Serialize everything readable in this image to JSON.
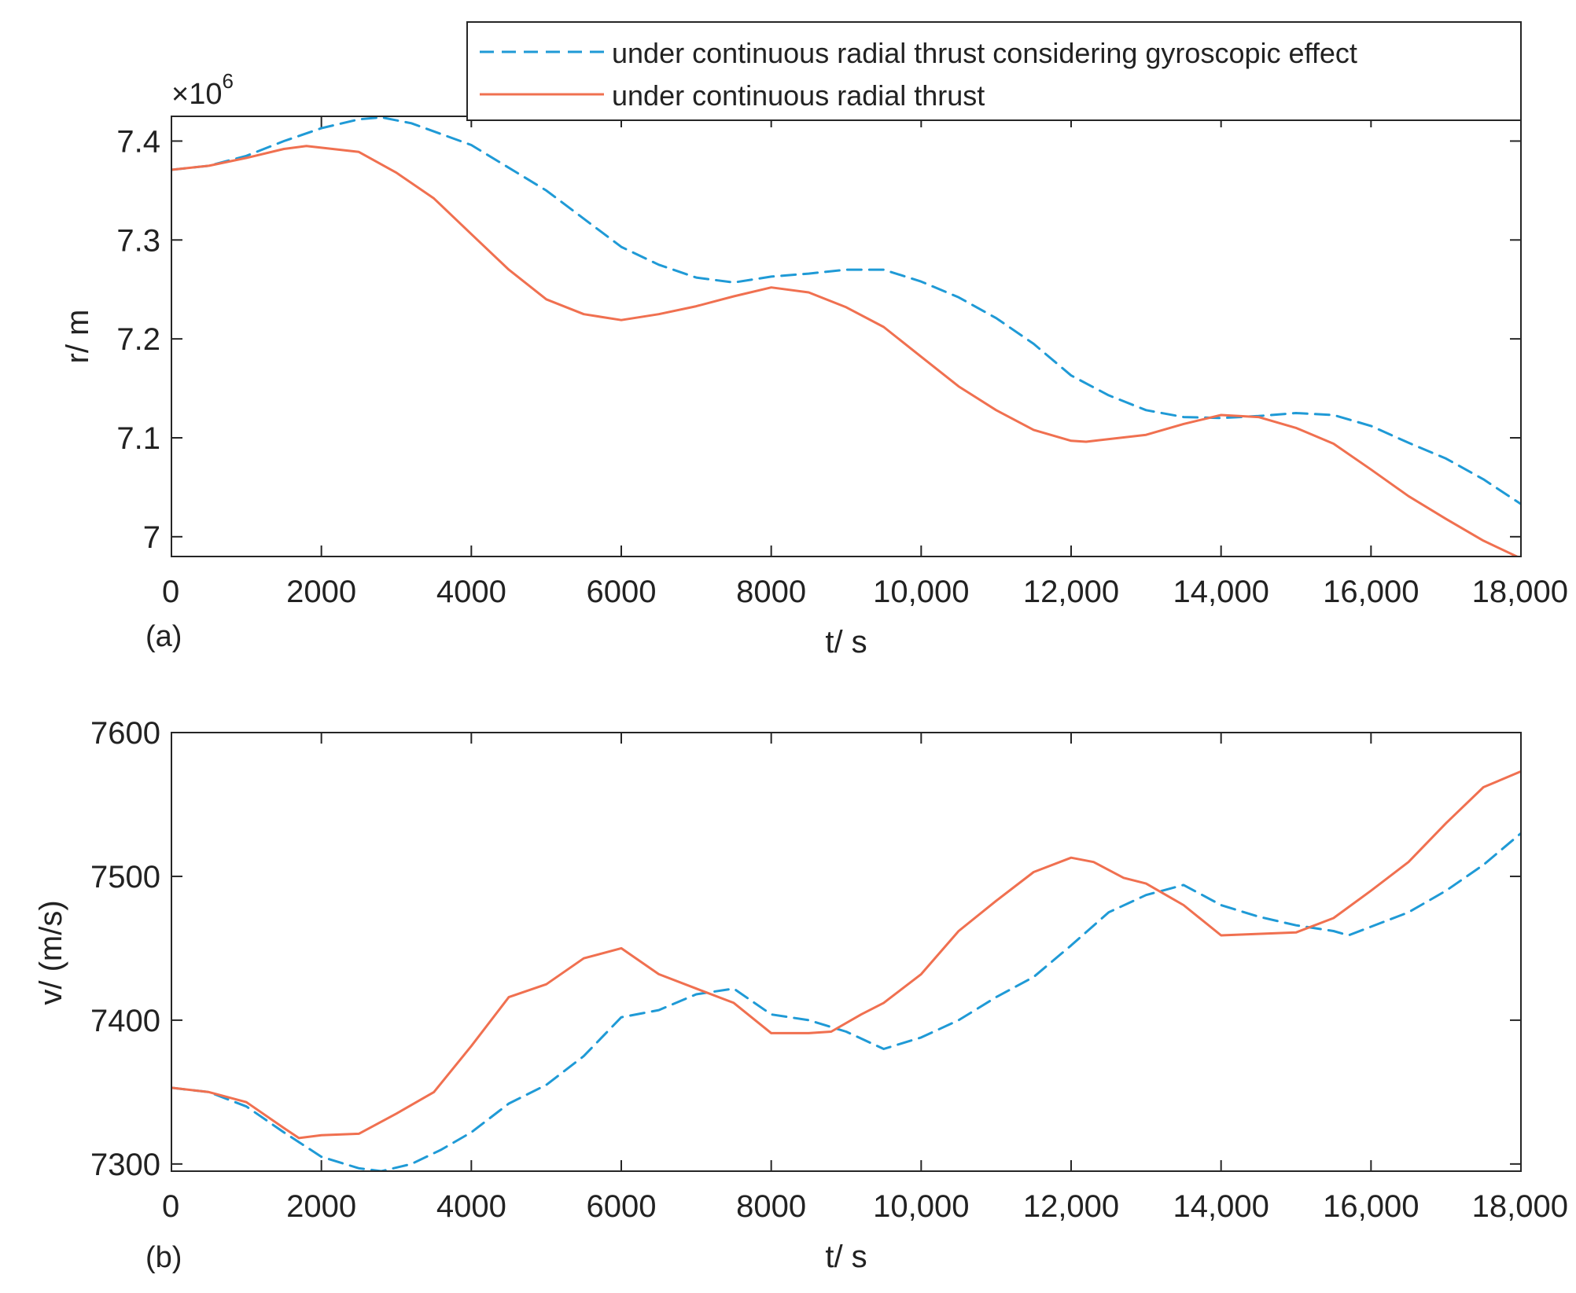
{
  "chart_data": [
    {
      "type": "line",
      "panel_label": "(a)",
      "xlabel": "t/ s",
      "ylabel": "r/ m",
      "exponent_label": "×10",
      "exponent_sup": "6",
      "xlim": [
        0,
        18000
      ],
      "ylim": [
        6.98,
        7.425
      ],
      "xticks": [
        0,
        2000,
        4000,
        6000,
        8000,
        10000,
        12000,
        14000,
        16000,
        18000
      ],
      "xtick_labels": [
        "0",
        "2000",
        "4000",
        "6000",
        "8000",
        "10,000",
        "12,000",
        "14,000",
        "16,000",
        "18,000"
      ],
      "yticks": [
        7.0,
        7.1,
        7.2,
        7.3,
        7.4
      ],
      "ytick_labels": [
        "7",
        "7.1",
        "7.2",
        "7.3",
        "7.4"
      ],
      "legend": {
        "position": "top-right",
        "entries": [
          {
            "label": "under continuous radial  thrust considering gyroscopic effect",
            "series": 0
          },
          {
            "label": "under continuous radial  thrust",
            "series": 1
          }
        ]
      },
      "series": [
        {
          "name": "under continuous radial  thrust considering gyroscopic effect",
          "style": "dashed",
          "color": "#1f9ad6",
          "x": [
            0,
            500,
            1000,
            1500,
            2000,
            2500,
            2800,
            3200,
            4000,
            5000,
            6000,
            6500,
            7000,
            7500,
            8000,
            8500,
            9000,
            9500,
            10000,
            10500,
            11000,
            11500,
            12000,
            12500,
            13000,
            13500,
            14000,
            14500,
            15000,
            15500,
            16000,
            16500,
            17000,
            17500,
            18000
          ],
          "y": [
            7.371,
            7.375,
            7.385,
            7.4,
            7.413,
            7.422,
            7.424,
            7.418,
            7.396,
            7.35,
            7.293,
            7.275,
            7.262,
            7.257,
            7.263,
            7.266,
            7.27,
            7.27,
            7.258,
            7.242,
            7.221,
            7.195,
            7.163,
            7.143,
            7.128,
            7.121,
            7.12,
            7.122,
            7.125,
            7.123,
            7.112,
            7.095,
            7.079,
            7.058,
            7.033
          ]
        },
        {
          "name": "under continuous radial  thrust",
          "style": "solid",
          "color": "#f07050",
          "x": [
            0,
            500,
            1000,
            1500,
            1800,
            2500,
            3000,
            3500,
            4000,
            4500,
            5000,
            5500,
            6000,
            6500,
            7000,
            7500,
            8000,
            8500,
            9000,
            9500,
            10000,
            10500,
            11000,
            11500,
            12000,
            12200,
            13000,
            13500,
            14000,
            14500,
            15000,
            15500,
            16000,
            16500,
            17000,
            17500,
            18000
          ],
          "y": [
            7.371,
            7.375,
            7.383,
            7.392,
            7.395,
            7.389,
            7.368,
            7.342,
            7.306,
            7.27,
            7.24,
            7.225,
            7.219,
            7.225,
            7.233,
            7.243,
            7.252,
            7.247,
            7.232,
            7.212,
            7.182,
            7.152,
            7.128,
            7.108,
            7.097,
            7.096,
            7.103,
            7.114,
            7.123,
            7.121,
            7.11,
            7.094,
            7.068,
            7.041,
            7.018,
            6.996,
            6.978
          ]
        }
      ]
    },
    {
      "type": "line",
      "panel_label": "(b)",
      "xlabel": "t/ s",
      "ylabel": "v/ (m/s)",
      "xlim": [
        0,
        18000
      ],
      "ylim": [
        7295,
        7600
      ],
      "xticks": [
        0,
        2000,
        4000,
        6000,
        8000,
        10000,
        12000,
        14000,
        16000,
        18000
      ],
      "xtick_labels": [
        "0",
        "2000",
        "4000",
        "6000",
        "8000",
        "10,000",
        "12,000",
        "14,000",
        "16,000",
        "18,000"
      ],
      "yticks": [
        7300,
        7400,
        7500,
        7600
      ],
      "ytick_labels": [
        "7300",
        "7400",
        "7500",
        "7600"
      ],
      "series": [
        {
          "name": "under continuous radial  thrust considering gyroscopic effect",
          "style": "dashed",
          "color": "#1f9ad6",
          "x": [
            0,
            500,
            1000,
            1500,
            2000,
            2500,
            2800,
            3200,
            3600,
            4000,
            4500,
            5000,
            5500,
            6000,
            6500,
            7000,
            7500,
            8000,
            8500,
            9000,
            9500,
            10000,
            10500,
            11000,
            11500,
            12000,
            12500,
            13000,
            13500,
            14000,
            14500,
            15000,
            15500,
            15700,
            16000,
            16500,
            17000,
            17500,
            18000
          ],
          "y": [
            7353,
            7350,
            7340,
            7322,
            7305,
            7297,
            7295,
            7300,
            7310,
            7322,
            7342,
            7355,
            7375,
            7402,
            7407,
            7418,
            7422,
            7404,
            7400,
            7392,
            7380,
            7388,
            7400,
            7416,
            7430,
            7452,
            7475,
            7487,
            7494,
            7480,
            7472,
            7466,
            7462,
            7459,
            7465,
            7475,
            7490,
            7508,
            7530
          ]
        },
        {
          "name": "under continuous radial  thrust",
          "style": "solid",
          "color": "#f07050",
          "x": [
            0,
            500,
            1000,
            1500,
            1700,
            2000,
            2500,
            3000,
            3500,
            4000,
            4500,
            5000,
            5500,
            6000,
            6500,
            7000,
            7500,
            8000,
            8500,
            8800,
            9200,
            9500,
            10000,
            10500,
            11000,
            11500,
            12000,
            12300,
            12700,
            13000,
            13500,
            14000,
            14500,
            15000,
            15500,
            16000,
            16500,
            17000,
            17500,
            18000
          ],
          "y": [
            7353,
            7350,
            7343,
            7325,
            7318,
            7320,
            7321,
            7335,
            7350,
            7382,
            7416,
            7425,
            7443,
            7450,
            7432,
            7422,
            7412,
            7391,
            7391,
            7392,
            7404,
            7412,
            7432,
            7462,
            7483,
            7503,
            7513,
            7510,
            7499,
            7495,
            7480,
            7459,
            7460,
            7461,
            7471,
            7490,
            7510,
            7537,
            7562,
            7573
          ]
        }
      ]
    }
  ]
}
